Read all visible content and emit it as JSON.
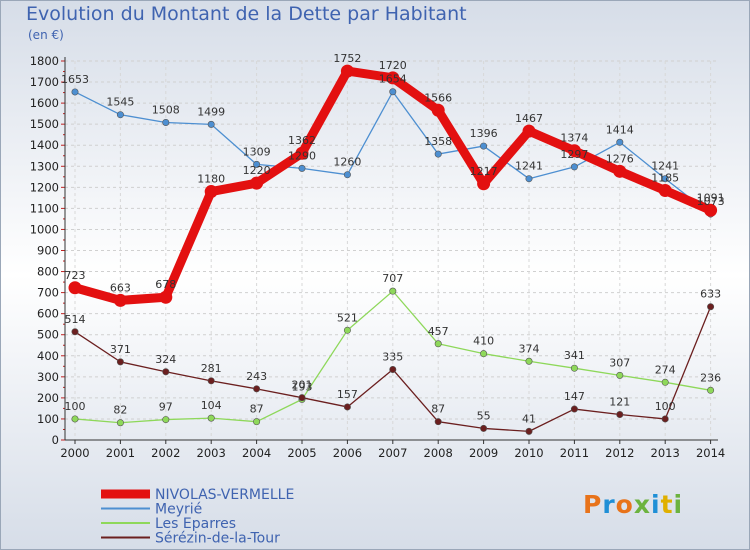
{
  "title": "Evolution du Montant de la Dette par Habitant",
  "unit": "(en €)",
  "logo": {
    "text": "Proxiti",
    "colors": [
      "#e8731a",
      "#1f8fd6",
      "#e8731a",
      "#6cb33f",
      "#1f8fd6",
      "#e0b000",
      "#6cb33f"
    ]
  },
  "chart_data": {
    "type": "line",
    "title": "Evolution du Montant de la Dette par Habitant",
    "subtitle": "(en €)",
    "xlabel": "",
    "ylabel": "",
    "ylim": [
      0,
      1800
    ],
    "yticks": [
      0,
      100,
      200,
      300,
      400,
      500,
      600,
      700,
      800,
      900,
      1000,
      1100,
      1200,
      1300,
      1400,
      1500,
      1600,
      1700,
      1800
    ],
    "x": [
      "2000",
      "2001",
      "2002",
      "2003",
      "2004",
      "2005",
      "2006",
      "2007",
      "2008",
      "2009",
      "2010",
      "2011",
      "2012",
      "2013",
      "2014"
    ],
    "grid": true,
    "legend_position": "bottom-left",
    "series": [
      {
        "name": "NIVOLAS-VERMELLE",
        "color": "#e31010",
        "emphasis": true,
        "values": [
          723,
          663,
          678,
          1180,
          1220,
          1362,
          1752,
          1720,
          1566,
          1217,
          1467,
          1374,
          1276,
          1185,
          1091
        ]
      },
      {
        "name": "Meyrié",
        "color": "#4d8fd1",
        "emphasis": false,
        "values": [
          1653,
          1545,
          1508,
          1499,
          1309,
          1290,
          1260,
          1654,
          1358,
          1396,
          1241,
          1297,
          1414,
          1241,
          1073
        ]
      },
      {
        "name": "Les Eparres",
        "color": "#8ed85a",
        "emphasis": false,
        "values": [
          100,
          82,
          97,
          104,
          87,
          193,
          521,
          707,
          457,
          410,
          374,
          341,
          307,
          274,
          236
        ]
      },
      {
        "name": "Sérézin-de-la-Tour",
        "color": "#6b1f1f",
        "emphasis": false,
        "values": [
          514,
          371,
          324,
          281,
          243,
          201,
          157,
          335,
          87,
          55,
          41,
          147,
          121,
          100,
          633
        ]
      }
    ]
  }
}
